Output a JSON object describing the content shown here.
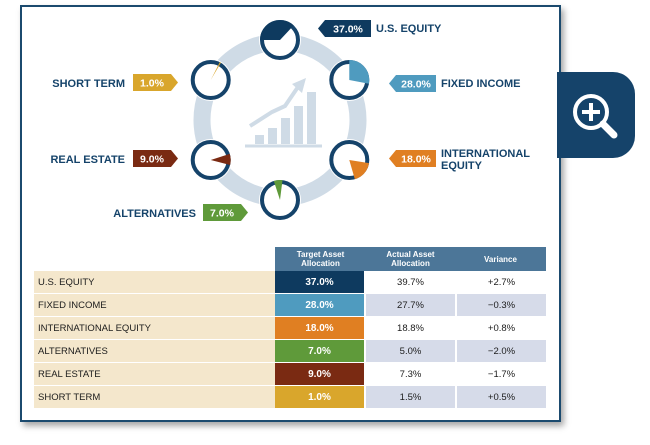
{
  "chart_data": {
    "type": "pie",
    "title": "",
    "series": [
      {
        "name": "U.S. EQUITY",
        "value": 37.0,
        "table_label": "U.S. EQUITY",
        "target": "37.0%",
        "actual": "39.7%",
        "variance": "+2.7%",
        "color": "#0e3a5f"
      },
      {
        "name": "FIXED INCOME",
        "value": 28.0,
        "table_label": "FIXED INCOME",
        "target": "28.0%",
        "actual": "27.7%",
        "variance": "−0.3%",
        "color": "#4f9bbf"
      },
      {
        "name": "INTERNATIONAL EQUITY",
        "value": 18.0,
        "table_label": "INTERNATIONAL EQUITY",
        "target": "18.0%",
        "actual": "18.8%",
        "variance": "+0.8%",
        "color": "#e07f22"
      },
      {
        "name": "ALTERNATIVES",
        "value": 7.0,
        "table_label": "ALTERNATIVES",
        "target": "7.0%",
        "actual": "5.0%",
        "variance": "−2.0%",
        "color": "#5f9a3a"
      },
      {
        "name": "REAL ESTATE",
        "value": 9.0,
        "table_label": "REAL ESTATE",
        "target": "9.0%",
        "actual": "7.3%",
        "variance": "−1.7%",
        "color": "#7a2a12"
      },
      {
        "name": "SHORT TERM",
        "value": 1.0,
        "table_label": "SHORT TERM",
        "target": "1.0%",
        "actual": "1.5%",
        "variance": "+0.5%",
        "color": "#d9a62c"
      }
    ]
  },
  "table": {
    "headers": [
      "Target Asset Allocation",
      "Actual Asset Allocation",
      "Variance"
    ]
  },
  "icons": {
    "zoom": "zoom-in-magnifier-icon",
    "center": "growth-bar-chart-icon"
  },
  "colors": {
    "navy": "#15436a",
    "ring": "#cfdbe6",
    "table_header": "#4c7698"
  }
}
